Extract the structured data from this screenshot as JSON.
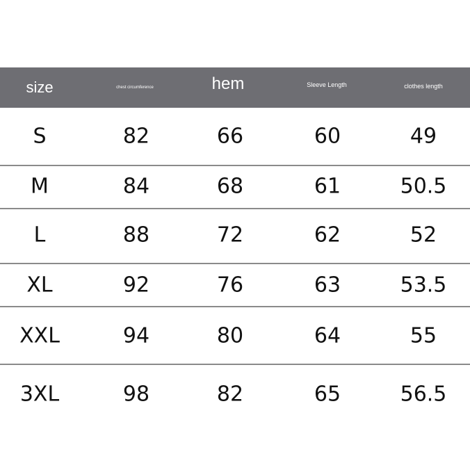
{
  "header": {
    "columns": [
      "size",
      "chest circumference",
      "hem",
      "Sleeve Length",
      "clothes length"
    ],
    "background": "#6e6e73"
  },
  "rows": [
    [
      "S",
      "82",
      "66",
      "60",
      "49"
    ],
    [
      "M",
      "84",
      "68",
      "61",
      "50.5"
    ],
    [
      "L",
      "88",
      "72",
      "62",
      "52"
    ],
    [
      "XL",
      "92",
      "76",
      "63",
      "53.5"
    ],
    [
      "XXL",
      "94",
      "80",
      "64",
      "55"
    ],
    [
      "3XL",
      "98",
      "82",
      "65",
      "56.5"
    ]
  ]
}
